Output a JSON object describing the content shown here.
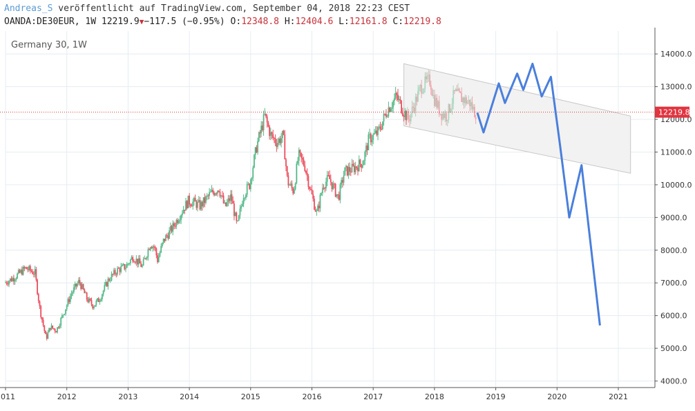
{
  "header": {
    "author": "Andreas_S",
    "published": "veröffentlicht auf TradingView.com, September 04, 2018 22:23 CEST",
    "symbol": "OANDA:DE30EUR, 1W",
    "last": "12219.9",
    "change": "−117.5 (−0.95%)",
    "o_label": "O:",
    "o_value": "12348.8",
    "h_label": "H:",
    "h_value": "12404.6",
    "l_label": "L:",
    "l_value": "12161.8",
    "c_label": "C:",
    "c_value": "12219.8"
  },
  "colors": {
    "up": "#53b987",
    "down": "#eb4d5c",
    "projection": "#4a7fdc",
    "price_line": "#e0343f",
    "grid": "#e6ecf2",
    "channel_fill": "#f2f2f2"
  },
  "chart_data": {
    "type": "candlestick",
    "title": "Germany 30, 1W",
    "x_ticks": [
      "2011",
      "2012",
      "2013",
      "2014",
      "2015",
      "2016",
      "2017",
      "2018",
      "2019",
      "2020",
      "2021"
    ],
    "y_ticks": [
      "4000.0",
      "5000.0",
      "6000.0",
      "7000.0",
      "8000.0",
      "9000.0",
      "10000.0",
      "11000.0",
      "12000.0",
      "13000.0",
      "14000.0"
    ],
    "ylim": [
      3800,
      14700
    ],
    "xlim": [
      2011.0,
      2021.6
    ],
    "last_price": "12219.8",
    "price_path": [
      [
        2011.0,
        7000
      ],
      [
        2011.15,
        7150
      ],
      [
        2011.35,
        7450
      ],
      [
        2011.5,
        7300
      ],
      [
        2011.58,
        6200
      ],
      [
        2011.68,
        5300
      ],
      [
        2011.75,
        5650
      ],
      [
        2011.85,
        5550
      ],
      [
        2011.95,
        6000
      ],
      [
        2012.1,
        6700
      ],
      [
        2012.22,
        7050
      ],
      [
        2012.35,
        6500
      ],
      [
        2012.45,
        6300
      ],
      [
        2012.55,
        6500
      ],
      [
        2012.7,
        7100
      ],
      [
        2012.85,
        7400
      ],
      [
        2012.98,
        7500
      ],
      [
        2013.1,
        7800
      ],
      [
        2013.25,
        7500
      ],
      [
        2013.38,
        8200
      ],
      [
        2013.45,
        8100
      ],
      [
        2013.5,
        7700
      ],
      [
        2013.6,
        8300
      ],
      [
        2013.75,
        8700
      ],
      [
        2013.9,
        9200
      ],
      [
        2014.0,
        9500
      ],
      [
        2014.1,
        9450
      ],
      [
        2014.2,
        9350
      ],
      [
        2014.35,
        9700
      ],
      [
        2014.5,
        9900
      ],
      [
        2014.6,
        9300
      ],
      [
        2014.7,
        9650
      ],
      [
        2014.8,
        8700
      ],
      [
        2014.9,
        9700
      ],
      [
        2015.0,
        10000
      ],
      [
        2015.12,
        11200
      ],
      [
        2015.25,
        12100
      ],
      [
        2015.35,
        11500
      ],
      [
        2015.45,
        11300
      ],
      [
        2015.55,
        11500
      ],
      [
        2015.62,
        10100
      ],
      [
        2015.72,
        9800
      ],
      [
        2015.8,
        10900
      ],
      [
        2015.9,
        10600
      ],
      [
        2016.0,
        9800
      ],
      [
        2016.1,
        9100
      ],
      [
        2016.2,
        10000
      ],
      [
        2016.3,
        10200
      ],
      [
        2016.45,
        9600
      ],
      [
        2016.55,
        10400
      ],
      [
        2016.7,
        10500
      ],
      [
        2016.85,
        10700
      ],
      [
        2016.95,
        11400
      ],
      [
        2017.1,
        11600
      ],
      [
        2017.25,
        12300
      ],
      [
        2017.4,
        12700
      ],
      [
        2017.5,
        12300
      ],
      [
        2017.6,
        12000
      ],
      [
        2017.8,
        13000
      ],
      [
        2017.95,
        13200
      ],
      [
        2018.0,
        12700
      ],
      [
        2018.12,
        12200
      ],
      [
        2018.22,
        12100
      ],
      [
        2018.35,
        12800
      ],
      [
        2018.5,
        12600
      ],
      [
        2018.6,
        12500
      ],
      [
        2018.68,
        12200
      ]
    ],
    "channel": {
      "upper": [
        [
          2017.5,
          13700
        ],
        [
          2021.2,
          12100
        ]
      ],
      "lower": [
        [
          2017.5,
          11800
        ],
        [
          2021.2,
          10350
        ]
      ]
    },
    "projection": [
      [
        2018.7,
        12200
      ],
      [
        2018.8,
        11600
      ],
      [
        2019.05,
        13100
      ],
      [
        2019.15,
        12500
      ],
      [
        2019.35,
        13400
      ],
      [
        2019.45,
        12900
      ],
      [
        2019.6,
        13700
      ],
      [
        2019.75,
        12700
      ],
      [
        2019.9,
        13300
      ],
      [
        2020.05,
        11200
      ],
      [
        2020.2,
        9000
      ],
      [
        2020.4,
        10600
      ],
      [
        2020.7,
        5700
      ]
    ]
  }
}
